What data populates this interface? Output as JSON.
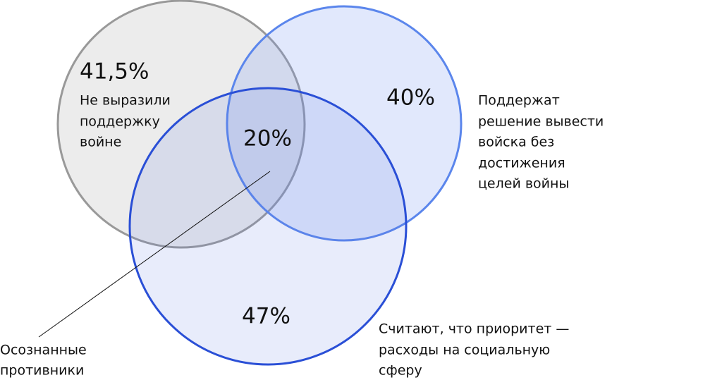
{
  "nodes": [
    {
      "value": "41,5%",
      "label": [
        "Не выразили",
        "поддержку",
        "войне"
      ]
    },
    {
      "value": "40%",
      "label": [
        "Поддержат",
        "решение вывести",
        "войска без",
        "достижения",
        "целей войны"
      ]
    },
    {
      "value": "47%",
      "label": [
        "Считают, что приоритет —",
        "расходы на социальную",
        "сферу"
      ]
    }
  ],
  "intersection": {
    "value": "20%",
    "label": [
      "Осознанные",
      "противники"
    ]
  }
}
